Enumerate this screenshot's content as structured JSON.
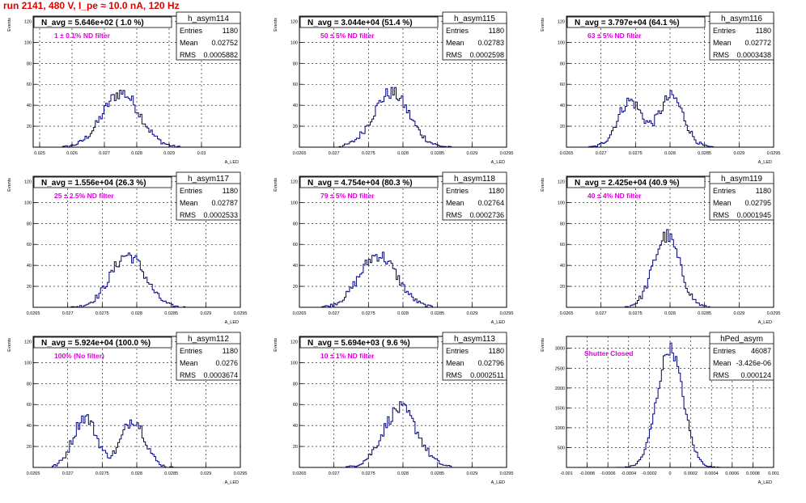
{
  "header": {
    "run_title": "run 2141,   480 V, I_pe ≈ 10.0 nA, 120 Hz"
  },
  "colors": {
    "hist": "#00007a",
    "title_text": "#e00000",
    "annotation": "#e000e0",
    "grid": "#000000"
  },
  "chart_data": [
    {
      "type": "histogram",
      "name": "h_asym114",
      "ylabel": "Events",
      "xlabel": "A_LED",
      "xlim": [
        0.0248,
        0.0312
      ],
      "ylim": [
        0,
        125
      ],
      "xticks": [
        0.025,
        0.026,
        0.027,
        0.028,
        0.029,
        0.03
      ],
      "xtick_labels": [
        "0.025",
        "0.026",
        "0.027",
        "0.028",
        "0.029",
        "0.03"
      ],
      "yticks": [
        20,
        40,
        60,
        80,
        100,
        120
      ],
      "ytick_labels": [
        "20",
        "40",
        "60",
        "80",
        "100",
        "120"
      ],
      "navg": "N_avg = 5.646e+02 ( 1.0 %)",
      "annotation": "1 ± 0.1% ND filter",
      "stats": {
        "title": "h_asym114",
        "entries": "1180",
        "mean": "0.02752",
        "rms": "0.0005882"
      },
      "peaks": [
        {
          "mu": 0.02752,
          "sigma": 0.00058,
          "amp": 52
        }
      ]
    },
    {
      "type": "histogram",
      "name": "h_asym115",
      "ylabel": "Events",
      "xlabel": "A_LED",
      "xlim": [
        0.0265,
        0.0295
      ],
      "ylim": [
        0,
        125
      ],
      "xticks": [
        0.0265,
        0.027,
        0.0275,
        0.028,
        0.0285,
        0.029,
        0.0295
      ],
      "xtick_labels": [
        "0.0265",
        "0.027",
        "0.0275",
        "0.028",
        "0.0285",
        "0.029",
        "0.0295"
      ],
      "yticks": [
        20,
        40,
        60,
        80,
        100,
        120
      ],
      "ytick_labels": [
        "20",
        "40",
        "60",
        "80",
        "100",
        "120"
      ],
      "navg": "N_avg = 3.044e+04 (51.4 %)",
      "annotation": "50 ± 5% ND filter",
      "stats": {
        "title": "h_asym115",
        "entries": "1180",
        "mean": "0.02783",
        "rms": "0.0002598"
      },
      "peaks": [
        {
          "mu": 0.02783,
          "sigma": 0.00026,
          "amp": 52
        }
      ]
    },
    {
      "type": "histogram",
      "name": "h_asym116",
      "ylabel": "Events",
      "xlabel": "A_LED",
      "xlim": [
        0.0265,
        0.0295
      ],
      "ylim": [
        0,
        125
      ],
      "xticks": [
        0.0265,
        0.027,
        0.0275,
        0.028,
        0.0285,
        0.029,
        0.0295
      ],
      "xtick_labels": [
        "0.0265",
        "0.027",
        "0.0275",
        "0.028",
        "0.0285",
        "0.029",
        "0.0295"
      ],
      "yticks": [
        20,
        40,
        60,
        80,
        100,
        120
      ],
      "ytick_labels": [
        "20",
        "40",
        "60",
        "80",
        "100",
        "120"
      ],
      "navg": "N_avg = 3.797e+04 (64.1 %)",
      "annotation": "63 ± 5% ND filter",
      "stats": {
        "title": "h_asym116",
        "entries": "1180",
        "mean": "0.02772",
        "rms": "0.0003438"
      },
      "peaks": [
        {
          "mu": 0.02742,
          "sigma": 0.00018,
          "amp": 44
        },
        {
          "mu": 0.02802,
          "sigma": 0.00018,
          "amp": 48
        }
      ]
    },
    {
      "type": "histogram",
      "name": "h_asym117",
      "ylabel": "Events",
      "xlabel": "A_LED",
      "xlim": [
        0.0265,
        0.0295
      ],
      "ylim": [
        0,
        125
      ],
      "xticks": [
        0.0265,
        0.027,
        0.0275,
        0.028,
        0.0285,
        0.029,
        0.0295
      ],
      "xtick_labels": [
        "0.0265",
        "0.027",
        "0.0275",
        "0.028",
        "0.0285",
        "0.029",
        "0.0295"
      ],
      "yticks": [
        20,
        40,
        60,
        80,
        100,
        120
      ],
      "ytick_labels": [
        "20",
        "40",
        "60",
        "80",
        "100",
        "120"
      ],
      "navg": "N_avg = 1.556e+04 (26.3 %)",
      "annotation": "25 ± 2.5% ND filter",
      "stats": {
        "title": "h_asym117",
        "entries": "1180",
        "mean": "0.02787",
        "rms": "0.0002533"
      },
      "peaks": [
        {
          "mu": 0.02787,
          "sigma": 0.00025,
          "amp": 50
        }
      ]
    },
    {
      "type": "histogram",
      "name": "h_asym118",
      "ylabel": "Events",
      "xlabel": "A_LED",
      "xlim": [
        0.0265,
        0.0295
      ],
      "ylim": [
        0,
        125
      ],
      "xticks": [
        0.0265,
        0.027,
        0.0275,
        0.028,
        0.0285,
        0.029,
        0.0295
      ],
      "xtick_labels": [
        "0.0265",
        "0.027",
        "0.0275",
        "0.028",
        "0.0285",
        "0.029",
        "0.0295"
      ],
      "yticks": [
        20,
        40,
        60,
        80,
        100,
        120
      ],
      "ytick_labels": [
        "20",
        "40",
        "60",
        "80",
        "100",
        "120"
      ],
      "navg": "N_avg = 4.754e+04 (80.3 %)",
      "annotation": "79 ± 5% ND filter",
      "stats": {
        "title": "h_asym118",
        "entries": "1180",
        "mean": "0.02764",
        "rms": "0.0002736"
      },
      "peaks": [
        {
          "mu": 0.02764,
          "sigma": 0.00027,
          "amp": 50
        }
      ]
    },
    {
      "type": "histogram",
      "name": "h_asym119",
      "ylabel": "Events",
      "xlabel": "A_LED",
      "xlim": [
        0.0265,
        0.0295
      ],
      "ylim": [
        0,
        125
      ],
      "xticks": [
        0.0265,
        0.027,
        0.0275,
        0.028,
        0.0285,
        0.029,
        0.0295
      ],
      "xtick_labels": [
        "0.0265",
        "0.027",
        "0.0275",
        "0.028",
        "0.0285",
        "0.029",
        "0.0295"
      ],
      "yticks": [
        20,
        40,
        60,
        80,
        100,
        120
      ],
      "ytick_labels": [
        "20",
        "40",
        "60",
        "80",
        "100",
        "120"
      ],
      "navg": "N_avg = 2.425e+04 (40.9 %)",
      "annotation": "40 ± 4% ND filter",
      "stats": {
        "title": "h_asym119",
        "entries": "1180",
        "mean": "0.02795",
        "rms": "0.0001945"
      },
      "peaks": [
        {
          "mu": 0.02795,
          "sigma": 0.00019,
          "amp": 68
        }
      ]
    },
    {
      "type": "histogram",
      "name": "h_asym112",
      "ylabel": "Events",
      "xlabel": "A_LED",
      "xlim": [
        0.0265,
        0.0295
      ],
      "ylim": [
        0,
        125
      ],
      "xticks": [
        0.0265,
        0.027,
        0.0275,
        0.028,
        0.0285,
        0.029,
        0.0295
      ],
      "xtick_labels": [
        "0.0265",
        "0.027",
        "0.0275",
        "0.028",
        "0.0285",
        "0.029",
        "0.0295"
      ],
      "yticks": [
        20,
        40,
        60,
        80,
        100,
        120
      ],
      "ytick_labels": [
        "20",
        "40",
        "60",
        "80",
        "100",
        "120"
      ],
      "navg": "N_avg = 5.924e+04 (100.0 %)",
      "annotation": "100% (No filter)",
      "stats": {
        "title": "h_asym112",
        "entries": "1180",
        "mean": "0.0276",
        "rms": "0.0003674"
      },
      "peaks": [
        {
          "mu": 0.02725,
          "sigma": 0.00017,
          "amp": 48
        },
        {
          "mu": 0.02795,
          "sigma": 0.00017,
          "amp": 46
        }
      ]
    },
    {
      "type": "histogram",
      "name": "h_asym113",
      "ylabel": "Events",
      "xlabel": "A_LED",
      "xlim": [
        0.0265,
        0.0295
      ],
      "ylim": [
        0,
        125
      ],
      "xticks": [
        0.0265,
        0.027,
        0.0275,
        0.028,
        0.0285,
        0.029,
        0.0295
      ],
      "xtick_labels": [
        "0.0265",
        "0.027",
        "0.0275",
        "0.028",
        "0.0285",
        "0.029",
        "0.0295"
      ],
      "yticks": [
        20,
        40,
        60,
        80,
        100,
        120
      ],
      "ytick_labels": [
        "20",
        "40",
        "60",
        "80",
        "100",
        "120"
      ],
      "navg": "N_avg = 5.694e+03 ( 9.6 %)",
      "annotation": "10 ± 1% ND filter",
      "stats": {
        "title": "h_asym113",
        "entries": "1180",
        "mean": "0.02796",
        "rms": "0.0002511"
      },
      "peaks": [
        {
          "mu": 0.02796,
          "sigma": 0.00025,
          "amp": 56
        }
      ]
    },
    {
      "type": "histogram",
      "name": "hPed_asym",
      "ylabel": "Events",
      "xlabel": "A_LED",
      "xlim": [
        -0.001,
        0.001
      ],
      "ylim": [
        0,
        3300
      ],
      "xticks": [
        -0.001,
        -0.0008,
        -0.0006,
        -0.0004,
        -0.0002,
        0,
        0.0002,
        0.0004,
        0.0006,
        0.0008,
        0.001
      ],
      "xtick_labels": [
        "-0.001",
        "-0.0008",
        "-0.0006",
        "-0.0004",
        "-0.0002",
        "0",
        "0.0002",
        "0.0004",
        "0.0006",
        "0.0008",
        "0.001"
      ],
      "yticks": [
        500,
        1000,
        1500,
        2000,
        2500,
        3000
      ],
      "ytick_labels": [
        "500",
        "1000",
        "1500",
        "2000",
        "2500",
        "3000"
      ],
      "navg": "",
      "annotation": "Shutter Closed",
      "stats": {
        "title": "hPed_asym",
        "entries": "46087",
        "mean": "-3.426e-06",
        "rms": "0.000124"
      },
      "peaks": [
        {
          "mu": 0.0,
          "sigma": 0.000124,
          "amp": 3000
        }
      ]
    }
  ]
}
